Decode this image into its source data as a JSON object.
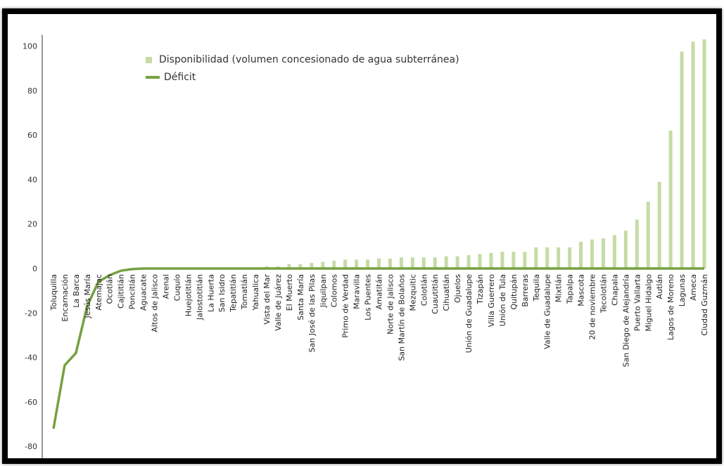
{
  "chart_data": {
    "type": "bar",
    "legend": {
      "bar_label": "Disponibilidad (volumen concesionado de agua subterránea)",
      "line_label": "Déficit",
      "placement": "top-left"
    },
    "colors": {
      "bar": "#c5dca5",
      "line": "#76a142",
      "axis": "#333333"
    },
    "ylim": [
      -85,
      105
    ],
    "yticks": [
      100,
      80,
      60,
      40,
      20,
      0,
      -20,
      -40,
      -60,
      -80
    ],
    "grid": false,
    "categories": [
      "Toluquilla",
      "Encarnación",
      "La Barca",
      "Jesús María",
      "Atemajac",
      "Ocotlán",
      "Cajititlán",
      "Poncitlán",
      "Aguacate",
      "Altos de Jalisco",
      "Arenal",
      "Cuquío",
      "Huejotitlán",
      "Jalostotitlán",
      "La Huerta",
      "San Isidro",
      "Tepatitlán",
      "Tomatlán",
      "Yahualica",
      "Vista del Mar",
      "Valle de Juárez",
      "El Muerto",
      "Santa María",
      "San José de las Pilas",
      "Jiquilpan",
      "Colomos",
      "Primo de Verdad",
      "Maravilla",
      "Los Puentes",
      "Amatitán",
      "Norte de Jalisco",
      "San Martín de Bolaños",
      "Mezquitic",
      "Colotlán",
      "Cuautitlán",
      "Cihuatlán",
      "Ojuelos",
      "Unión de Guadalupe",
      "Tizapán",
      "Villa Guerrero",
      "Unión de Tula",
      "Quitupán",
      "Barreras",
      "Tequila",
      "Valle de Guadalupe",
      "Mixtlán",
      "Tapalpa",
      "Mascota",
      "20 de noviembre",
      "Tecolotlán",
      "Chapala",
      "San Diego de Alejandría",
      "Puerto Vallarta",
      "Miguel Hidalgo",
      "Autlán",
      "Lagos de Moreno",
      "Lagunas",
      "Ameca",
      "Ciudad Guzmán"
    ],
    "series": [
      {
        "name": "Disponibilidad (volumen concesionado de agua subterránea)",
        "type": "bar",
        "values": [
          0,
          0,
          0,
          0,
          0,
          0,
          0,
          0,
          0,
          0,
          0,
          0,
          0,
          0,
          0,
          0,
          0,
          0,
          0,
          1,
          1,
          2,
          2,
          2.5,
          3,
          3.5,
          4,
          4,
          4,
          4.5,
          4.5,
          5,
          5,
          5,
          5,
          5.5,
          5.5,
          6,
          6.5,
          7,
          7.5,
          7.5,
          7.5,
          9.5,
          9.5,
          9.5,
          9.5,
          12,
          13,
          13.5,
          15,
          17,
          22,
          30,
          39,
          62,
          97.5,
          102,
          103
        ]
      },
      {
        "name": "Déficit",
        "type": "line",
        "values": [
          -72,
          -43.5,
          -38,
          -17,
          -6,
          -3,
          -1,
          -0.3,
          0,
          0,
          0,
          0,
          0,
          0,
          0,
          0,
          0,
          0,
          0,
          0,
          0,
          0,
          0,
          0,
          0,
          0,
          0,
          0,
          0,
          0,
          0,
          0,
          0,
          0,
          0,
          0,
          0,
          0,
          0,
          0,
          0,
          0,
          0,
          0,
          0,
          0,
          0,
          0,
          0,
          0,
          0,
          0,
          0,
          0,
          0,
          0,
          0,
          0,
          0
        ]
      }
    ]
  }
}
